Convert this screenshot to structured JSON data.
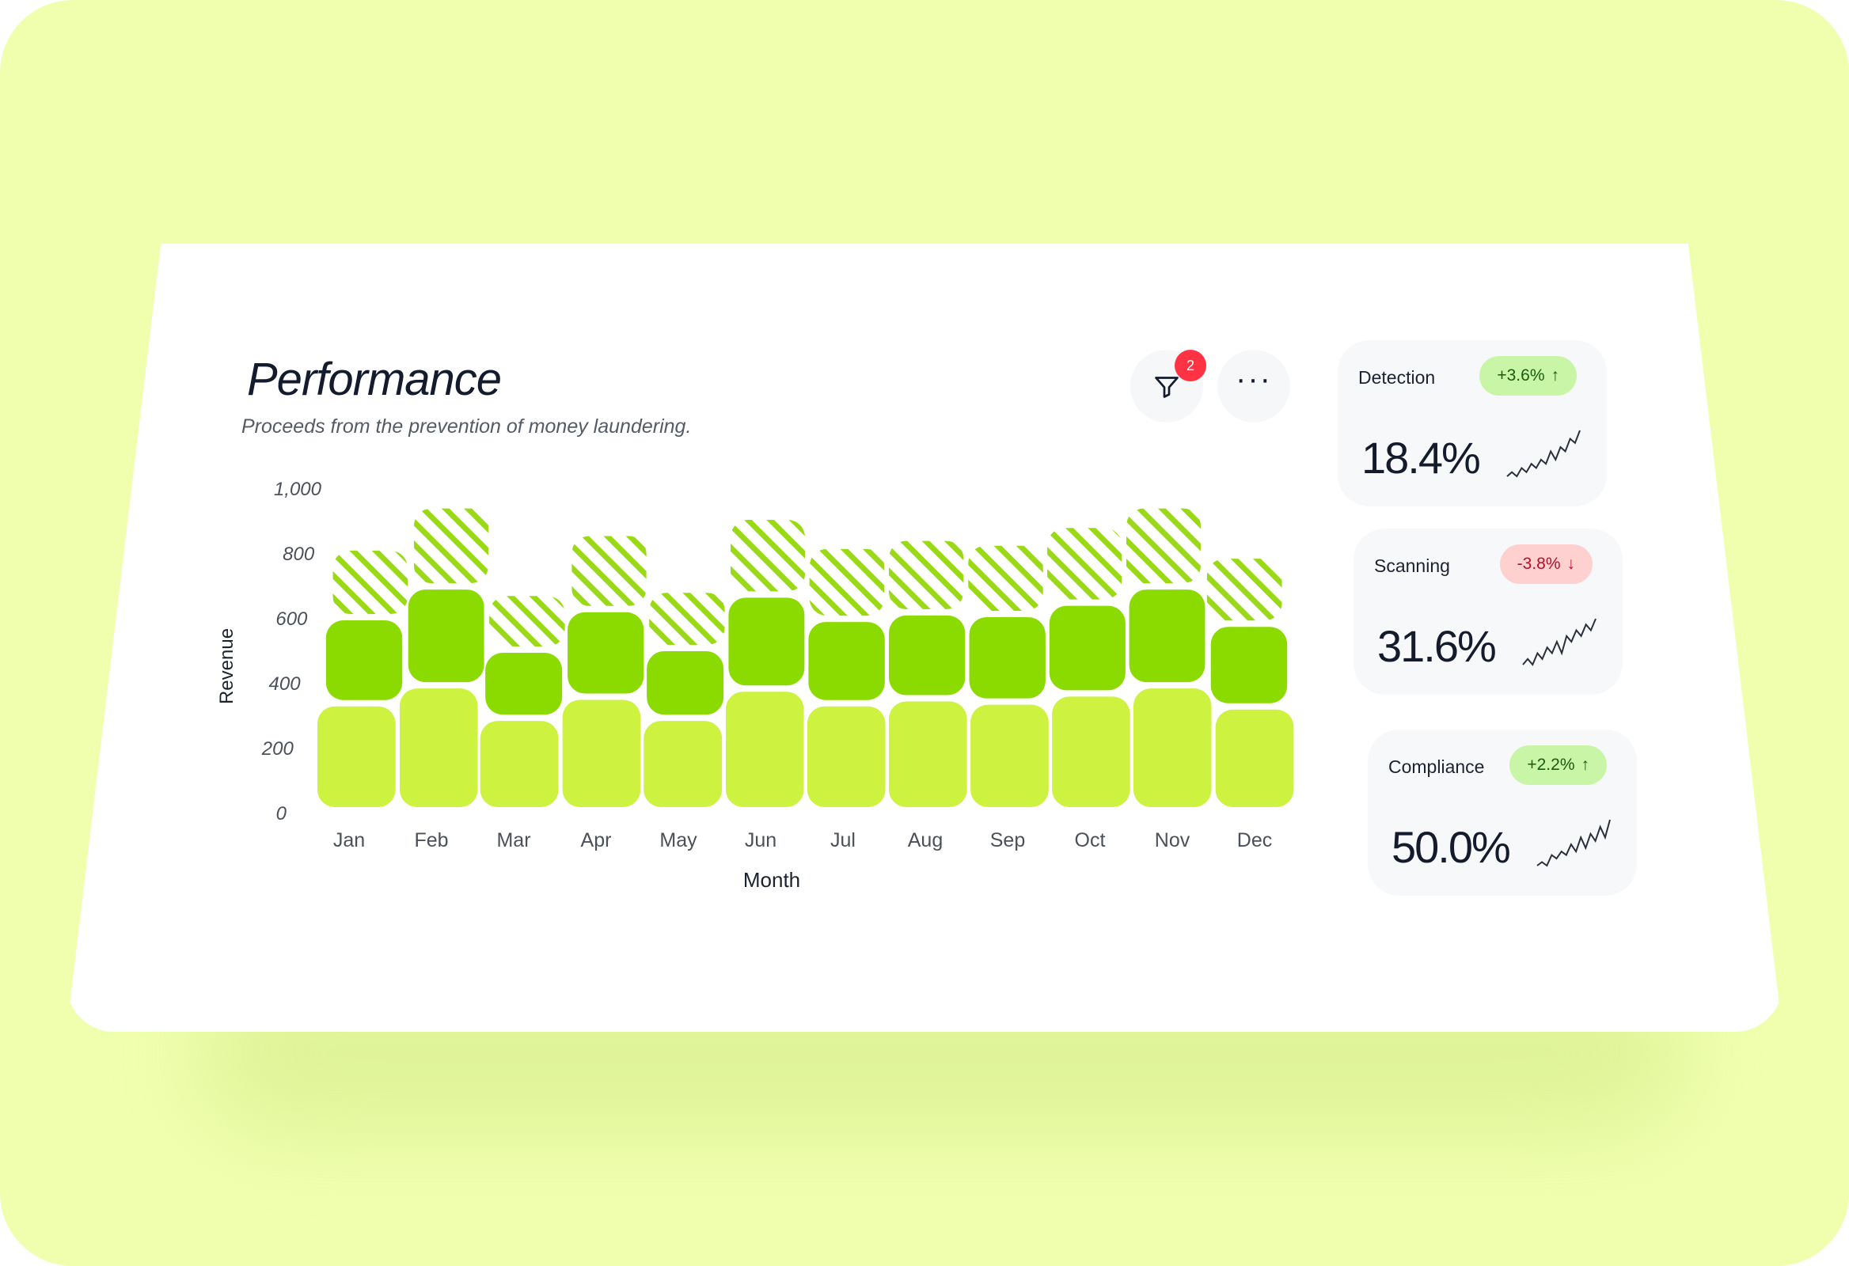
{
  "header": {
    "title": "Performance",
    "subtitle": "Proceeds from the prevention of money laundering.",
    "filter_badge": "2",
    "more_label": "···"
  },
  "colors": {
    "background": "#f0ffae",
    "bottom_segment": "#cdf23f",
    "middle_segment": "#8bdb00",
    "hatched_segment": "#9ad916",
    "badge": "#ff3344"
  },
  "chart_data": {
    "type": "bar",
    "stacked": true,
    "xlabel": "Month",
    "ylabel": "Revenue",
    "ylim": [
      0,
      1000
    ],
    "yticks": [
      "0",
      "200",
      "400",
      "600",
      "800",
      "1,000"
    ],
    "categories": [
      "Jan",
      "Feb",
      "Mar",
      "Apr",
      "May",
      "Jun",
      "Jul",
      "Aug",
      "Sep",
      "Oct",
      "Nov",
      "Dec"
    ],
    "series": [
      {
        "values": [
          330,
          385,
          285,
          350,
          285,
          375,
          330,
          345,
          335,
          360,
          385,
          320
        ]
      },
      {
        "values": [
          265,
          305,
          210,
          270,
          215,
          290,
          260,
          265,
          270,
          280,
          305,
          255
        ]
      },
      {
        "values": [
          215,
          250,
          175,
          235,
          180,
          240,
          225,
          230,
          220,
          240,
          250,
          210
        ]
      }
    ]
  },
  "stats": [
    {
      "label": "Detection",
      "change": "+3.6%",
      "direction": "up",
      "value": "18.4%",
      "spark": [
        2,
        3,
        2,
        4,
        3,
        5,
        4,
        6,
        5,
        8,
        6,
        9,
        8,
        11,
        10,
        13
      ]
    },
    {
      "label": "Scanning",
      "change": "-3.8%",
      "direction": "down",
      "value": "31.6%",
      "spark": [
        3,
        4,
        3,
        5,
        4,
        6,
        5,
        7,
        5,
        8,
        7,
        9,
        8,
        10,
        9,
        11
      ]
    },
    {
      "label": "Compliance",
      "change": "+2.2%",
      "direction": "up",
      "value": "50.0%",
      "spark": [
        2,
        3,
        2,
        5,
        4,
        6,
        5,
        8,
        6,
        10,
        7,
        11,
        9,
        13,
        10,
        15
      ]
    }
  ]
}
